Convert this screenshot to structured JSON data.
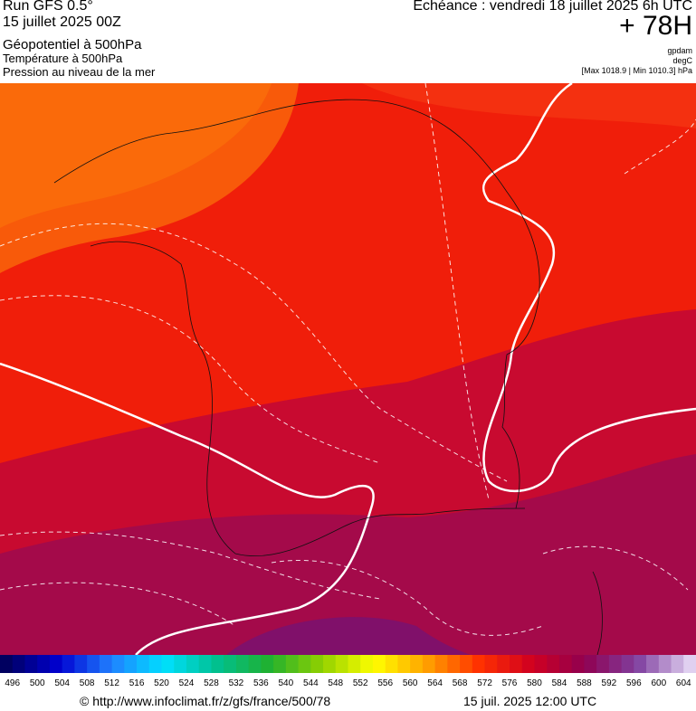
{
  "header": {
    "run": "Run GFS 0.5°",
    "date": "15 juillet 2025 00Z",
    "field1": "Géopotentiel à 500hPa",
    "field2": "Température à 500hPa",
    "field3": "Pression au niveau de la mer",
    "valid": "Echéance : vendredi 18 juillet 2025 6h UTC",
    "lead": "+ 78H",
    "unit1": "gpdam",
    "unit2": "degC",
    "pressure": "[Max 1018.9 | Min 1010.3] hPa"
  },
  "colorbar": {
    "labels": [
      496,
      500,
      504,
      508,
      512,
      516,
      520,
      524,
      528,
      532,
      536,
      540,
      544,
      548,
      552,
      556,
      560,
      564,
      568,
      572,
      576,
      580,
      584,
      588,
      592,
      596,
      600,
      604
    ],
    "stops": [
      "#000060",
      "#0000d0",
      "#2080ff",
      "#00e0ff",
      "#00c090",
      "#20b030",
      "#90d000",
      "#ffff00",
      "#ffa000",
      "#ff3000",
      "#d00020",
      "#900050",
      "#8040a0",
      "#e0d0f0"
    ]
  },
  "footer": {
    "url": "© http://www.infoclimat.fr/z/gfs/france/500/78",
    "time": "15 juil. 2025 12:00 UTC"
  }
}
